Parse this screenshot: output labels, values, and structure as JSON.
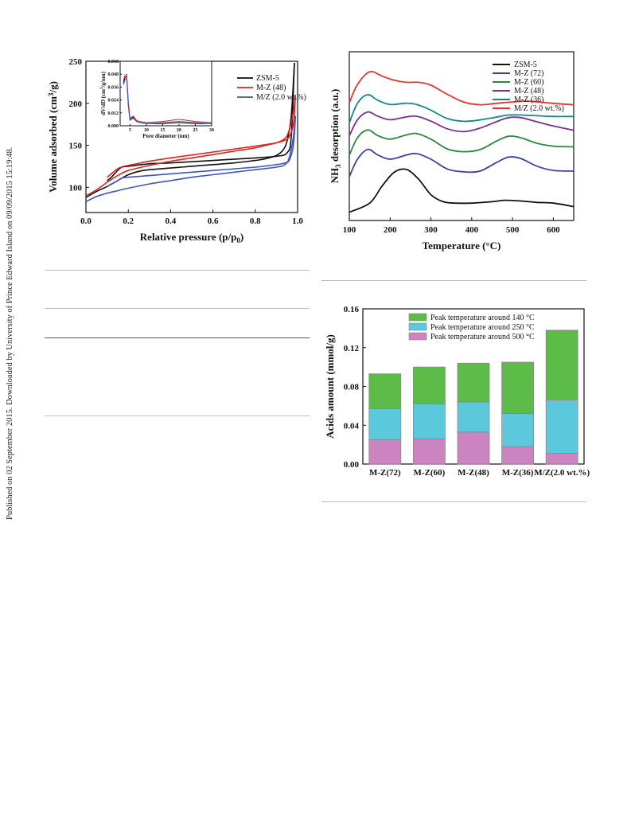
{
  "side_note": "Published on 02 September 2015. Downloaded by University of Prince Edward Island on 09/09/2015 15:19:48.",
  "chart_data": [
    {
      "type": "line",
      "xlabel": "Relative pressure (p/p0)",
      "ylabel": "Volume adsorbed (cm3/g)",
      "xlim": [
        0.0,
        1.0
      ],
      "ylim": [
        70,
        250
      ],
      "xticks": [
        "0.0",
        "0.2",
        "0.4",
        "0.6",
        "0.8",
        "1.0"
      ],
      "yticks": [
        "100",
        "150",
        "200",
        "250"
      ],
      "legend_position": "top-right",
      "series": [
        {
          "name": "ZSM-5",
          "color": "#111111",
          "adsorption": [
            [
              0.0,
              88
            ],
            [
              0.05,
              95
            ],
            [
              0.1,
              101
            ],
            [
              0.15,
              108
            ],
            [
              0.2,
              115
            ],
            [
              0.25,
              119
            ],
            [
              0.3,
              121
            ],
            [
              0.4,
              123
            ],
            [
              0.5,
              125
            ],
            [
              0.6,
              127
            ],
            [
              0.7,
              129
            ],
            [
              0.8,
              132
            ],
            [
              0.85,
              134
            ],
            [
              0.9,
              138
            ],
            [
              0.93,
              144
            ],
            [
              0.95,
              155
            ],
            [
              0.97,
              185
            ],
            [
              0.985,
              248
            ]
          ],
          "desorption": [
            [
              0.985,
              248
            ],
            [
              0.97,
              160
            ],
            [
              0.95,
              141
            ],
            [
              0.9,
              137
            ],
            [
              0.8,
              135
            ],
            [
              0.6,
              132
            ],
            [
              0.4,
              129
            ],
            [
              0.3,
              128
            ],
            [
              0.2,
              125
            ],
            [
              0.17,
              124
            ],
            [
              0.15,
              120
            ],
            [
              0.12,
              112
            ],
            [
              0.1,
              108
            ]
          ]
        },
        {
          "name": "M-Z (48)",
          "color": "#e0241b",
          "adsorption": [
            [
              0.0,
              90
            ],
            [
              0.05,
              97
            ],
            [
              0.1,
              106
            ],
            [
              0.15,
              114
            ],
            [
              0.2,
              120
            ],
            [
              0.3,
              126
            ],
            [
              0.4,
              131
            ],
            [
              0.5,
              135
            ],
            [
              0.6,
              139
            ],
            [
              0.7,
              143
            ],
            [
              0.8,
              147
            ],
            [
              0.85,
              150
            ],
            [
              0.9,
              153
            ],
            [
              0.94,
              158
            ],
            [
              0.96,
              168
            ],
            [
              0.98,
              190
            ],
            [
              0.99,
              210
            ]
          ],
          "desorption": [
            [
              0.99,
              210
            ],
            [
              0.98,
              175
            ],
            [
              0.96,
              160
            ],
            [
              0.94,
              156
            ],
            [
              0.9,
              153
            ],
            [
              0.8,
              149
            ],
            [
              0.6,
              142
            ],
            [
              0.4,
              135
            ],
            [
              0.3,
              131
            ],
            [
              0.22,
              127
            ],
            [
              0.18,
              125
            ],
            [
              0.15,
              122
            ],
            [
              0.1,
              112
            ]
          ]
        },
        {
          "name": "M/Z (2.0 wt.%)",
          "color": "#3b54c8",
          "adsorption": [
            [
              0.0,
              83
            ],
            [
              0.05,
              89
            ],
            [
              0.1,
              93
            ],
            [
              0.15,
              96
            ],
            [
              0.2,
              99
            ],
            [
              0.3,
              104
            ],
            [
              0.4,
              108
            ],
            [
              0.5,
              112
            ],
            [
              0.6,
              115
            ],
            [
              0.7,
              118
            ],
            [
              0.8,
              121
            ],
            [
              0.9,
              124
            ],
            [
              0.94,
              127
            ],
            [
              0.96,
              135
            ],
            [
              0.98,
              160
            ],
            [
              0.99,
              185
            ]
          ],
          "desorption": [
            [
              0.99,
              185
            ],
            [
              0.98,
              150
            ],
            [
              0.96,
              132
            ],
            [
              0.94,
              129
            ],
            [
              0.9,
              127
            ],
            [
              0.8,
              124
            ],
            [
              0.6,
              120
            ],
            [
              0.4,
              116
            ],
            [
              0.3,
              114
            ],
            [
              0.2,
              112
            ],
            [
              0.17,
              111
            ],
            [
              0.15,
              108
            ],
            [
              0.1,
              101
            ]
          ]
        }
      ],
      "inset": {
        "xlabel": "Pore diameter (nm)",
        "ylabel": "dV/dD (cm3/g/nm)",
        "xlim": [
          2,
          30
        ],
        "ylim": [
          0,
          0.06
        ],
        "xticks": [
          "5",
          "10",
          "15",
          "20",
          "25",
          "30"
        ],
        "yticks": [
          "0.000",
          "0.012",
          "0.024",
          "0.036",
          "0.048",
          "0.060"
        ],
        "series": [
          {
            "name": "ZSM-5",
            "color": "#111111",
            "points": [
              [
                3,
                0.04
              ],
              [
                3.5,
                0.045
              ],
              [
                4,
                0.046
              ],
              [
                4.5,
                0.02
              ],
              [
                5,
                0.006
              ],
              [
                6,
                0.008
              ],
              [
                7,
                0.004
              ],
              [
                8,
                0.003
              ],
              [
                10,
                0.002
              ],
              [
                15,
                0.002
              ],
              [
                20,
                0.003
              ],
              [
                25,
                0.002
              ],
              [
                30,
                0.002
              ]
            ]
          },
          {
            "name": "M-Z (48)",
            "color": "#e0241b",
            "points": [
              [
                3,
                0.042
              ],
              [
                3.5,
                0.047
              ],
              [
                4,
                0.048
              ],
              [
                4.5,
                0.022
              ],
              [
                5,
                0.007
              ],
              [
                6,
                0.009
              ],
              [
                7,
                0.005
              ],
              [
                8,
                0.004
              ],
              [
                10,
                0.003
              ],
              [
                15,
                0.004
              ],
              [
                20,
                0.006
              ],
              [
                25,
                0.004
              ],
              [
                30,
                0.003
              ]
            ]
          },
          {
            "name": "M/Z (2.0 wt.%)",
            "color": "#3b54c8",
            "points": [
              [
                3,
                0.038
              ],
              [
                3.5,
                0.043
              ],
              [
                4,
                0.044
              ],
              [
                4.5,
                0.018
              ],
              [
                5,
                0.005
              ],
              [
                6,
                0.007
              ],
              [
                7,
                0.004
              ],
              [
                8,
                0.003
              ],
              [
                10,
                0.002
              ],
              [
                15,
                0.003
              ],
              [
                20,
                0.004
              ],
              [
                25,
                0.003
              ],
              [
                30,
                0.002
              ]
            ]
          }
        ]
      }
    },
    {
      "type": "line",
      "xlabel": "Temperature (°C)",
      "ylabel": "NH3 desorption (a.u.)",
      "xlim": [
        100,
        650
      ],
      "xticks": [
        "100",
        "200",
        "300",
        "400",
        "500",
        "600"
      ],
      "legend_position": "top-right",
      "series": [
        {
          "name": "ZSM-5",
          "color": "#111111",
          "offset": 0,
          "points": [
            [
              100,
              5
            ],
            [
              150,
              18
            ],
            [
              180,
              42
            ],
            [
              210,
              62
            ],
            [
              240,
              66
            ],
            [
              270,
              52
            ],
            [
              300,
              30
            ],
            [
              330,
              20
            ],
            [
              360,
              18
            ],
            [
              400,
              18
            ],
            [
              450,
              20
            ],
            [
              480,
              22
            ],
            [
              520,
              21
            ],
            [
              560,
              19
            ],
            [
              600,
              18
            ],
            [
              650,
              13
            ]
          ]
        },
        {
          "name": "M-Z (72)",
          "color": "#3b3fae",
          "offset": 1,
          "points": [
            [
              100,
              25
            ],
            [
              120,
              50
            ],
            [
              145,
              64
            ],
            [
              170,
              56
            ],
            [
              200,
              50
            ],
            [
              240,
              56
            ],
            [
              265,
              58
            ],
            [
              300,
              50
            ],
            [
              340,
              36
            ],
            [
              380,
              32
            ],
            [
              420,
              33
            ],
            [
              460,
              45
            ],
            [
              490,
              53
            ],
            [
              520,
              51
            ],
            [
              560,
              40
            ],
            [
              600,
              34
            ],
            [
              650,
              33
            ]
          ]
        },
        {
          "name": "M-Z (60)",
          "color": "#2b8a3e",
          "offset": 2,
          "points": [
            [
              100,
              25
            ],
            [
              120,
              50
            ],
            [
              145,
              61
            ],
            [
              170,
              53
            ],
            [
              200,
              48
            ],
            [
              240,
              54
            ],
            [
              265,
              56
            ],
            [
              300,
              48
            ],
            [
              340,
              34
            ],
            [
              380,
              30
            ],
            [
              420,
              33
            ],
            [
              460,
              45
            ],
            [
              490,
              52
            ],
            [
              520,
              50
            ],
            [
              560,
              42
            ],
            [
              600,
              38
            ],
            [
              650,
              37
            ]
          ]
        },
        {
          "name": "M-Z (48)",
          "color": "#7d2c9a",
          "offset": 3,
          "points": [
            [
              100,
              22
            ],
            [
              120,
              45
            ],
            [
              145,
              56
            ],
            [
              170,
              50
            ],
            [
              200,
              45
            ],
            [
              240,
              49
            ],
            [
              265,
              50
            ],
            [
              300,
              43
            ],
            [
              340,
              32
            ],
            [
              380,
              28
            ],
            [
              420,
              33
            ],
            [
              460,
              42
            ],
            [
              490,
              48
            ],
            [
              520,
              48
            ],
            [
              560,
              42
            ],
            [
              600,
              36
            ],
            [
              650,
              30
            ]
          ]
        },
        {
          "name": "M-Z (36)",
          "color": "#148a85",
          "offset": 4,
          "points": [
            [
              100,
              10
            ],
            [
              120,
              38
            ],
            [
              145,
              50
            ],
            [
              170,
              42
            ],
            [
              200,
              36
            ],
            [
              240,
              38
            ],
            [
              265,
              36
            ],
            [
              300,
              28
            ],
            [
              340,
              16
            ],
            [
              380,
              12
            ],
            [
              420,
              14
            ],
            [
              460,
              18
            ],
            [
              490,
              21
            ],
            [
              520,
              21
            ],
            [
              560,
              20
            ],
            [
              600,
              19
            ],
            [
              650,
              19
            ]
          ]
        },
        {
          "name": "M/Z (2.0 wt.%)",
          "color": "#e8352a",
          "offset": 5,
          "points": [
            [
              100,
              8
            ],
            [
              120,
              34
            ],
            [
              150,
              52
            ],
            [
              180,
              46
            ],
            [
              210,
              40
            ],
            [
              240,
              37
            ],
            [
              270,
              37
            ],
            [
              300,
              33
            ],
            [
              340,
              20
            ],
            [
              380,
              9
            ],
            [
              420,
              5
            ],
            [
              460,
              7
            ],
            [
              500,
              9
            ],
            [
              540,
              10
            ],
            [
              600,
              7
            ],
            [
              650,
              5
            ]
          ]
        }
      ]
    },
    {
      "type": "bar",
      "stacked": true,
      "ylabel": "Acids amount (mmol/g)",
      "ylim": [
        0.0,
        0.16
      ],
      "yticks": [
        "0.00",
        "0.04",
        "0.08",
        "0.12",
        "0.16"
      ],
      "categories": [
        "M-Z(72)",
        "M-Z(60)",
        "M-Z(48)",
        "M-Z(36)",
        "M/Z(2.0 wt.%)"
      ],
      "legend_position": "top-left",
      "series": [
        {
          "name": "Peak temperature around 500 °C",
          "color": "#cc84c0",
          "values": [
            0.025,
            0.026,
            0.033,
            0.018,
            0.011
          ]
        },
        {
          "name": "Peak temperature around 250 °C",
          "color": "#5bc8dc",
          "values": [
            0.032,
            0.036,
            0.031,
            0.034,
            0.055
          ]
        },
        {
          "name": "Peak temperature around 140 °C",
          "color": "#5dbb47",
          "values": [
            0.036,
            0.038,
            0.04,
            0.053,
            0.072
          ]
        }
      ],
      "legend_order": [
        "Peak temperature around 140 °C",
        "Peak temperature around 250 °C",
        "Peak temperature around 500 °C"
      ]
    }
  ]
}
